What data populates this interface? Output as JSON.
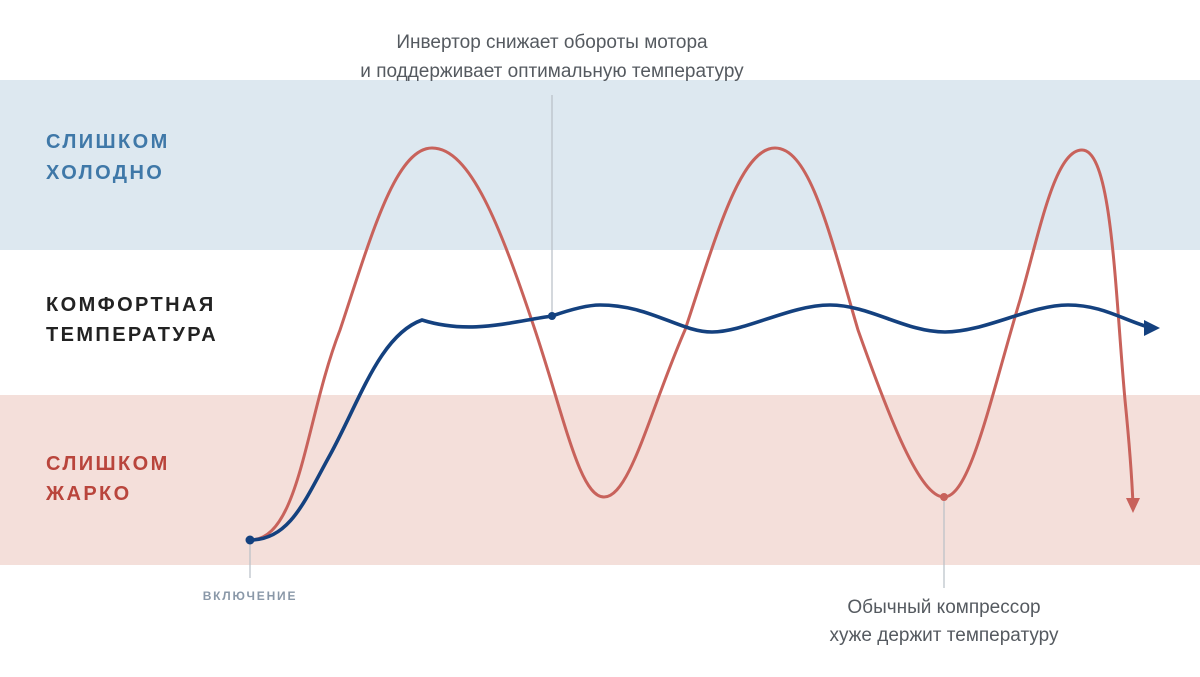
{
  "colors": {
    "cold_band": "#dde8f0",
    "hot_band": "#f4dfda",
    "cold_text": "#3f78a8",
    "comfort_text": "#222222",
    "hot_text": "#b9453c",
    "inverter_line": "#14417f",
    "compressor_line": "#c8625b",
    "leader_line": "#b8bfc6"
  },
  "bands": {
    "cold": {
      "line1": "СЛИШКОМ",
      "line2": "ХОЛОДНО"
    },
    "comfort": {
      "line1": "КОМФОРТНАЯ",
      "line2": "ТЕМПЕРАТУРА"
    },
    "hot": {
      "line1": "СЛИШКОМ",
      "line2": "ЖАРКО"
    }
  },
  "annotations": {
    "inverter": {
      "line1": "Инвертор снижает обороты мотора",
      "line2": "и поддерживает оптимальную температуру"
    },
    "compressor": {
      "line1": "Обычный компрессор",
      "line2": "хуже держит температуру"
    },
    "start": "ВКЛЮЧЕНИЕ"
  },
  "series": {
    "inverter": {
      "icon": "arrow-right-icon"
    },
    "compressor": {
      "icon": "arrow-down-icon"
    }
  }
}
